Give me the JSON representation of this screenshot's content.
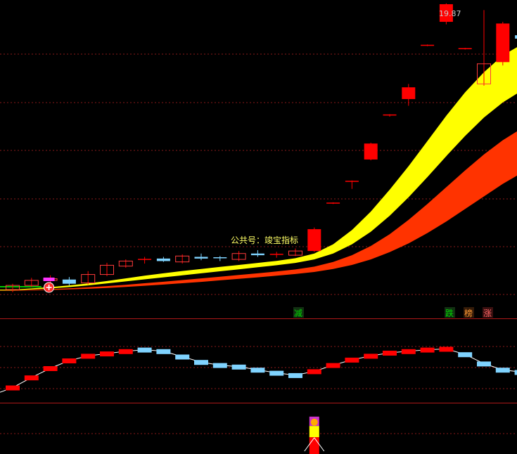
{
  "colors": {
    "background": "#000000",
    "grid": "#8b1a1a",
    "divider": "#b01818",
    "up_candle": "#ff0000",
    "up_candle_hollow": "#ff3b3b",
    "down_candle": "#7fd3ff",
    "band_fast": "#ffff00",
    "band_slow": "#ff3300",
    "line_white": "#ffffff",
    "green_line": "#00c800",
    "price_text": "#c8c8c8",
    "watermark_text": "#ffff66"
  },
  "icons": {
    "buy_signal": "buy-signal-marker",
    "top_signal": "top-signal-marker"
  },
  "chart_data": [
    {
      "type": "candlestick",
      "panel": "main",
      "title": "",
      "watermark": "公共号：竣宝指标",
      "price_label": "19.87",
      "ylim": [
        2.5,
        20.5
      ],
      "grid": true,
      "candles": [
        {
          "o": 3.25,
          "h": 3.6,
          "l": 3.1,
          "c": 3.5
        },
        {
          "o": 3.5,
          "h": 3.95,
          "l": 3.4,
          "c": 3.8
        },
        {
          "o": 3.8,
          "h": 4.1,
          "l": 3.65,
          "c": 3.9
        },
        {
          "o": 3.85,
          "h": 4.0,
          "l": 3.5,
          "c": 3.6
        },
        {
          "o": 3.65,
          "h": 4.35,
          "l": 3.55,
          "c": 4.15
        },
        {
          "o": 4.15,
          "h": 4.85,
          "l": 4.05,
          "c": 4.7
        },
        {
          "o": 4.65,
          "h": 5.05,
          "l": 4.55,
          "c": 4.95
        },
        {
          "o": 5.0,
          "h": 5.2,
          "l": 4.8,
          "c": 5.05
        },
        {
          "o": 5.1,
          "h": 5.2,
          "l": 4.9,
          "c": 4.95
        },
        {
          "o": 4.9,
          "h": 5.35,
          "l": 4.8,
          "c": 5.25
        },
        {
          "o": 5.2,
          "h": 5.4,
          "l": 5.0,
          "c": 5.1
        },
        {
          "o": 5.15,
          "h": 5.25,
          "l": 4.95,
          "c": 5.1
        },
        {
          "o": 5.05,
          "h": 5.55,
          "l": 4.95,
          "c": 5.4
        },
        {
          "o": 5.4,
          "h": 5.6,
          "l": 5.2,
          "c": 5.3
        },
        {
          "o": 5.3,
          "h": 5.5,
          "l": 5.15,
          "c": 5.35
        },
        {
          "o": 5.3,
          "h": 5.7,
          "l": 5.25,
          "c": 5.55
        },
        {
          "o": 5.55,
          "h": 6.95,
          "l": 5.5,
          "c": 6.85
        },
        {
          "o": 8.4,
          "h": 8.45,
          "l": 8.35,
          "c": 8.4
        },
        {
          "o": 9.7,
          "h": 9.75,
          "l": 9.25,
          "c": 9.7
        },
        {
          "o": 11.0,
          "h": 12.0,
          "l": 10.95,
          "c": 11.95
        },
        {
          "o": 13.6,
          "h": 13.7,
          "l": 13.55,
          "c": 13.65
        },
        {
          "o": 14.6,
          "h": 15.5,
          "l": 14.2,
          "c": 15.3
        },
        {
          "o": 17.8,
          "h": 17.85,
          "l": 17.75,
          "c": 17.8
        },
        {
          "o": 19.2,
          "h": 20.3,
          "l": 19.05,
          "c": 20.25
        },
        {
          "o": 17.6,
          "h": 17.65,
          "l": 17.55,
          "c": 17.6
        },
        {
          "o": 15.5,
          "h": 19.9,
          "l": 15.4,
          "c": 16.7
        },
        {
          "o": 16.8,
          "h": 19.2,
          "l": 16.6,
          "c": 19.1
        },
        {
          "o": 18.4,
          "h": 19.6,
          "l": 17.7,
          "c": 18.2
        }
      ],
      "band_fast_upper": [
        3.25,
        3.32,
        3.4,
        3.5,
        3.62,
        3.76,
        3.92,
        4.08,
        4.22,
        4.36,
        4.48,
        4.6,
        4.72,
        4.84,
        4.96,
        5.12,
        5.4,
        5.95,
        6.8,
        7.9,
        9.2,
        10.6,
        12.1,
        13.6,
        15.0,
        16.2,
        17.2,
        17.85
      ],
      "band_fast_lower": [
        3.2,
        3.26,
        3.32,
        3.4,
        3.5,
        3.62,
        3.74,
        3.86,
        3.98,
        4.1,
        4.22,
        4.34,
        4.46,
        4.58,
        4.7,
        4.84,
        5.05,
        5.4,
        5.95,
        6.7,
        7.65,
        8.75,
        9.95,
        11.2,
        12.4,
        13.5,
        14.4,
        15.1
      ],
      "band_slow_upper": [
        3.2,
        3.24,
        3.28,
        3.33,
        3.39,
        3.46,
        3.54,
        3.63,
        3.72,
        3.82,
        3.92,
        4.02,
        4.12,
        4.22,
        4.33,
        4.45,
        4.62,
        4.9,
        5.3,
        5.85,
        6.55,
        7.4,
        8.35,
        9.35,
        10.35,
        11.3,
        12.15,
        12.85
      ],
      "band_slow_lower": [
        3.18,
        3.2,
        3.23,
        3.26,
        3.3,
        3.35,
        3.41,
        3.48,
        3.55,
        3.63,
        3.71,
        3.8,
        3.89,
        3.98,
        4.08,
        4.18,
        4.3,
        4.48,
        4.72,
        5.05,
        5.48,
        6.0,
        6.62,
        7.3,
        8.05,
        8.8,
        9.55,
        10.2
      ]
    },
    {
      "type": "stepline",
      "panel": "middle",
      "title": "",
      "signal_labels": [
        {
          "text": "减",
          "fg": "#00d800",
          "bg": "#123012"
        },
        {
          "text": "跌",
          "fg": "#00d800",
          "bg": "#123012"
        },
        {
          "text": "榜",
          "fg": "#ff9933",
          "bg": "#331a08"
        },
        {
          "text": "涨",
          "fg": "#ff6666",
          "bg": "#3a1010"
        }
      ],
      "ylim": [
        0,
        100
      ],
      "values": [
        15,
        28,
        40,
        50,
        56,
        59,
        62,
        64,
        62,
        55,
        48,
        44,
        42,
        38,
        34,
        31,
        36,
        44,
        51,
        56,
        60,
        62,
        64,
        65,
        58,
        46,
        38,
        35
      ],
      "dir": [
        "up",
        "up",
        "up",
        "up",
        "up",
        "up",
        "up",
        "down",
        "down",
        "down",
        "down",
        "down",
        "down",
        "down",
        "down",
        "down",
        "up",
        "up",
        "up",
        "up",
        "up",
        "up",
        "up",
        "up",
        "down",
        "down",
        "down",
        "down"
      ]
    },
    {
      "type": "bar",
      "panel": "bottom",
      "title": "",
      "values": [
        0,
        0,
        0,
        0,
        0,
        0,
        0,
        0,
        0,
        0,
        0,
        0,
        0,
        0,
        0,
        0,
        38,
        0,
        0,
        0,
        0,
        0,
        0,
        0,
        0,
        0,
        0,
        0
      ],
      "ylim": [
        0,
        40
      ]
    }
  ]
}
